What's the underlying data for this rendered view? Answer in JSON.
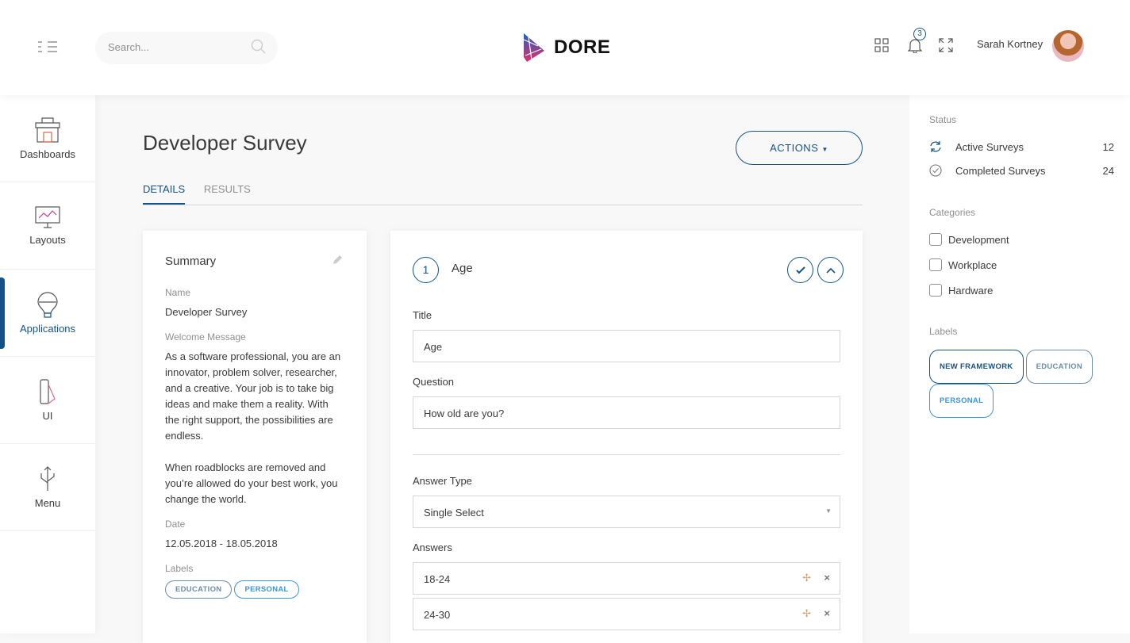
{
  "header": {
    "search_placeholder": "Search...",
    "logo": "DORE",
    "notification_count": "3",
    "user_name": "Sarah Kortney"
  },
  "sidebar": {
    "items": [
      {
        "label": "Dashboards"
      },
      {
        "label": "Layouts"
      },
      {
        "label": "Applications",
        "active": true
      },
      {
        "label": "UI"
      },
      {
        "label": "Menu"
      }
    ]
  },
  "page": {
    "title": "Developer Survey",
    "actions_label": "ACTIONS",
    "tabs": [
      {
        "label": "DETAILS",
        "active": true
      },
      {
        "label": "RESULTS"
      }
    ]
  },
  "summary": {
    "heading": "Summary",
    "name_label": "Name",
    "name": "Developer Survey",
    "welcome_label": "Welcome Message",
    "welcome_p1": "As a software professional, you are an innovator, problem solver, researcher, and a creative. Your job is to take big ideas and make them a reality. With the right support, the possibilities are endless.",
    "welcome_p2": "When roadblocks are removed and you’re allowed do your best work, you change the world.",
    "date_label": "Date",
    "date": "12.05.2018 - 18.05.2018",
    "labels_label": "Labels",
    "labels": [
      "EDUCATION",
      "PERSONAL"
    ]
  },
  "question": {
    "number": "1",
    "name": "Age",
    "title_label": "Title",
    "title_value": "Age",
    "question_label": "Question",
    "question_value": "How old are you?",
    "answer_type_label": "Answer Type",
    "answer_type": "Single Select",
    "answers_label": "Answers",
    "answers": [
      "18-24",
      "24-30"
    ]
  },
  "right": {
    "status_heading": "Status",
    "status": [
      {
        "label": "Active Surveys",
        "count": "12"
      },
      {
        "label": "Completed Surveys",
        "count": "24"
      }
    ],
    "categories_heading": "Categories",
    "categories": [
      "Development",
      "Workplace",
      "Hardware"
    ],
    "labels_heading": "Labels",
    "labels": [
      "NEW FRAMEWORK",
      "EDUCATION",
      "PERSONAL"
    ]
  },
  "colors": {
    "primary": "#145388",
    "education": "#6c8ea6",
    "personal": "#3e95d8"
  }
}
